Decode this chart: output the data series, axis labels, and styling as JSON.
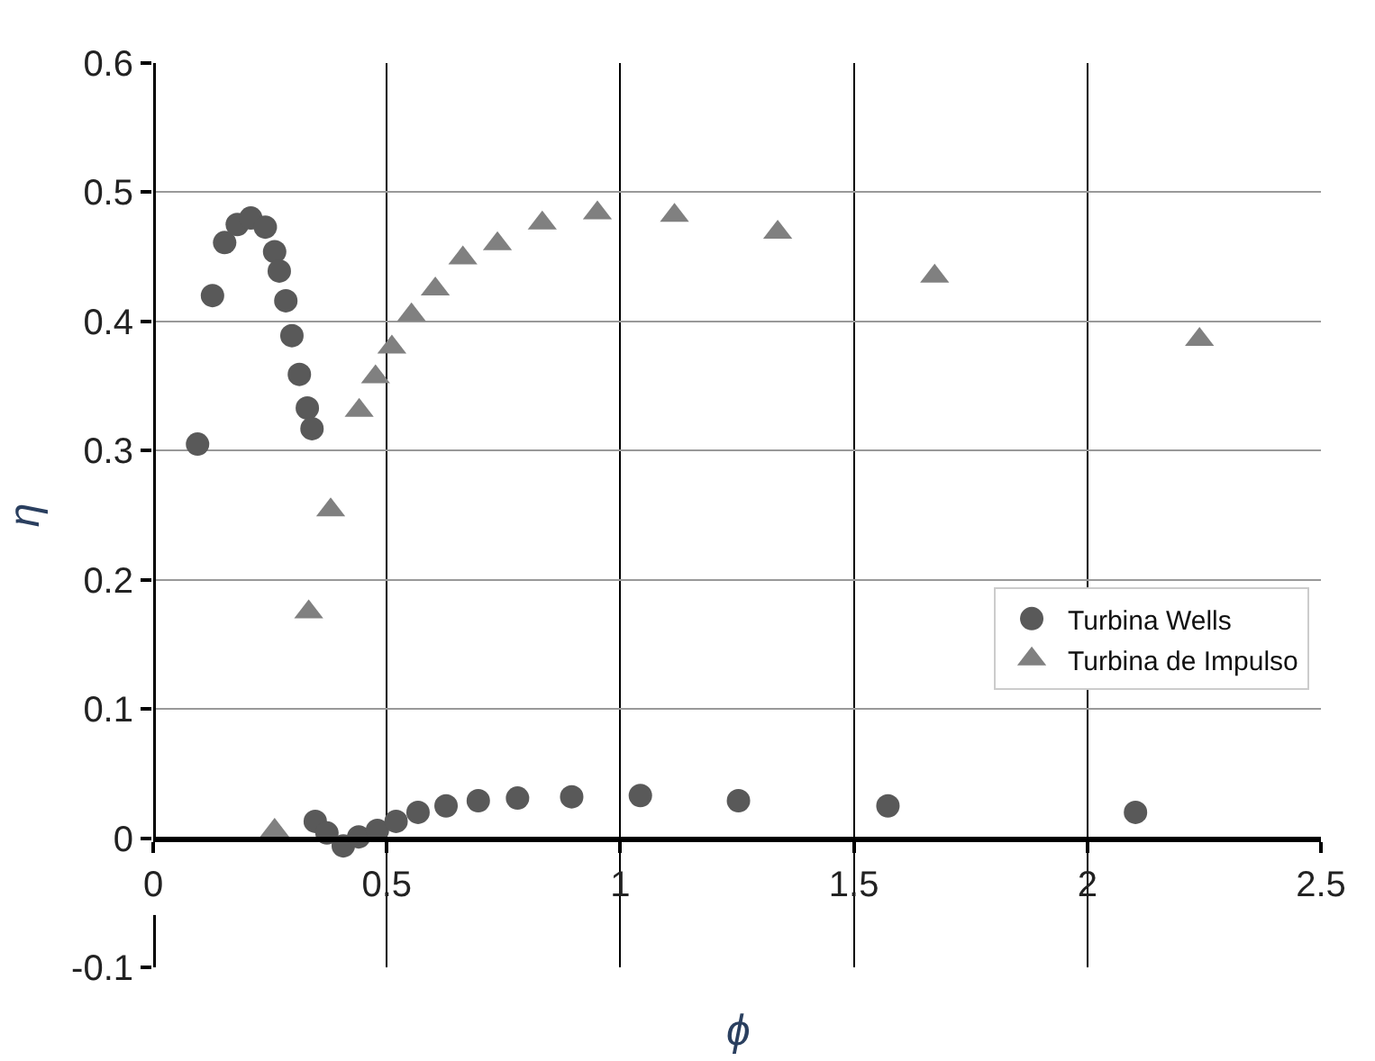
{
  "chart_data": {
    "type": "scatter",
    "xlabel": "ϕ",
    "ylabel": "η",
    "xlim": [
      0,
      2.5
    ],
    "xticks": [
      0,
      0.5,
      1,
      1.5,
      2,
      2.5
    ],
    "ylim": [
      -0.1,
      0.6
    ],
    "yticks": [
      -0.1,
      0,
      0.1,
      0.2,
      0.3,
      0.4,
      0.5,
      0.6
    ],
    "grid": true,
    "legend": "right",
    "series": [
      {
        "name": "Turbina Wells",
        "color": "#595959",
        "marker": "circle",
        "x": [
          0.095,
          0.127,
          0.153,
          0.18,
          0.209,
          0.24,
          0.26,
          0.27,
          0.284,
          0.297,
          0.313,
          0.33,
          0.34,
          0.347,
          0.372,
          0.407,
          0.44,
          0.48,
          0.52,
          0.567,
          0.627,
          0.696,
          0.78,
          0.896,
          1.043,
          1.253,
          1.573,
          2.103
        ],
        "values": [
          0.305,
          0.42,
          0.461,
          0.475,
          0.48,
          0.473,
          0.454,
          0.439,
          0.416,
          0.389,
          0.359,
          0.333,
          0.317,
          0.013,
          0.004,
          -0.006,
          0.001,
          0.006,
          0.013,
          0.02,
          0.025,
          0.029,
          0.031,
          0.032,
          0.033,
          0.029,
          0.025,
          0.02
        ]
      },
      {
        "name": "Turbina de Impulso",
        "color": "#808080",
        "marker": "triangle",
        "x": [
          0.26,
          0.333,
          0.38,
          0.441,
          0.476,
          0.511,
          0.553,
          0.604,
          0.663,
          0.737,
          0.833,
          0.951,
          1.116,
          1.337,
          1.673,
          2.24
        ],
        "values": [
          0.006,
          0.175,
          0.254,
          0.331,
          0.357,
          0.38,
          0.405,
          0.425,
          0.449,
          0.46,
          0.476,
          0.484,
          0.482,
          0.469,
          0.435,
          0.386
        ]
      }
    ]
  }
}
